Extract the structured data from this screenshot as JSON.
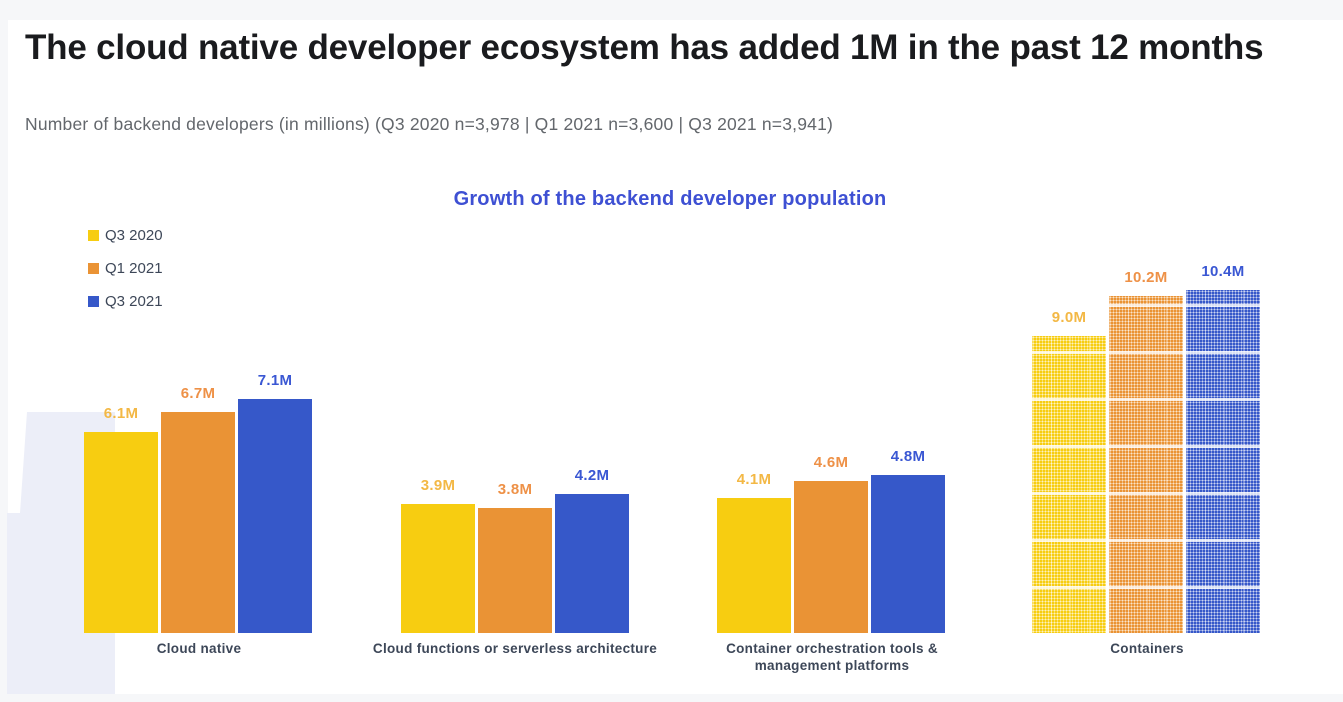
{
  "page": {
    "title": "The cloud native developer ecosystem has added 1M in the past 12 months",
    "subtitle": "Number of backend developers (in millions) (Q3 2020 n=3,978 | Q1 2021 n=3,600 | Q3 2021 n=3,941)"
  },
  "colors": {
    "page_background": "#f6f7f9",
    "card_background": "#ffffff",
    "title_text": "#1a1b1e",
    "subtitle_text": "#63676c",
    "chart_title": "#3e50d3",
    "category_label": "#3d4758",
    "legend_label": "#3d4758",
    "watermark": "#eceef8",
    "series_yellow": "#f7cd11",
    "series_orange": "#ea9335",
    "series_blue": "#3658c9"
  },
  "chart_data": {
    "type": "bar",
    "title": "Growth of the backend developer population",
    "xlabel": "",
    "ylabel": "",
    "unit": "millions of developers",
    "ylim": [
      0,
      11
    ],
    "grid": false,
    "axes_hidden": true,
    "legend_position": "top-left",
    "value_label_suffix": "M",
    "categories": [
      "Cloud native",
      "Cloud functions or serverless architecture",
      "Container orchestration tools & management platforms",
      "Containers"
    ],
    "series": [
      {
        "name": "Q3 2020",
        "color": "#f7cd11",
        "label_color": "#f3b845",
        "values": [
          6.1,
          3.9,
          4.1,
          9.0
        ],
        "labels": [
          "6.1M",
          "3.9M",
          "4.1M",
          "9.0M"
        ]
      },
      {
        "name": "Q1 2021",
        "color": "#ea9335",
        "label_color": "#ee9147",
        "values": [
          6.7,
          3.8,
          4.6,
          10.2
        ],
        "labels": [
          "6.7M",
          "3.8M",
          "4.6M",
          "10.2M"
        ]
      },
      {
        "name": "Q3 2021",
        "color": "#3658c9",
        "label_color": "#3a57d3",
        "values": [
          7.1,
          4.2,
          4.8,
          10.4
        ],
        "labels": [
          "7.1M",
          "4.2M",
          "4.8M",
          "10.4M"
        ]
      }
    ],
    "textured_categories": [
      "Containers"
    ]
  }
}
